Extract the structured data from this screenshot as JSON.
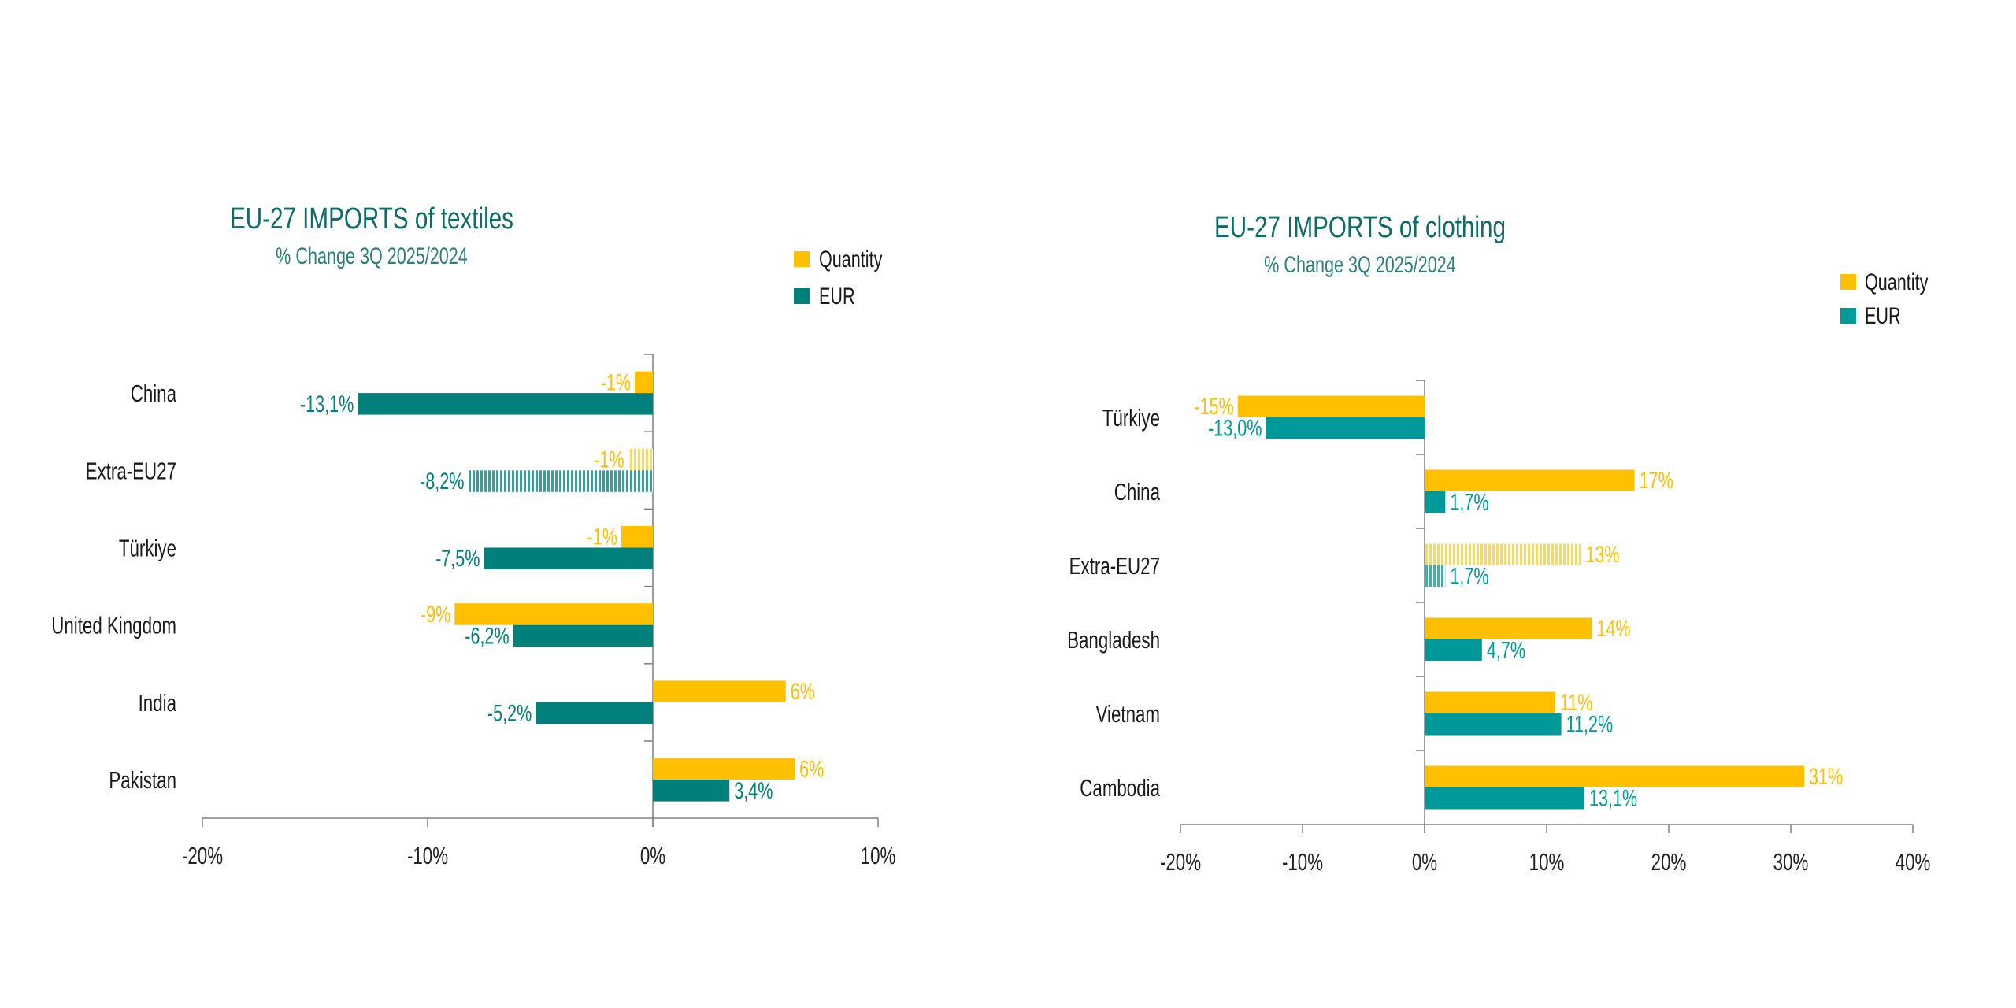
{
  "colors": {
    "quantity": "#FFC000",
    "eur_textiles": "#007F7B",
    "eur_clothing": "#009999",
    "title": "#0E6B66",
    "subtitle": "#2E7F7A",
    "axis": "#7F7F7F",
    "text": "#1A1A1A"
  },
  "chart_data": [
    {
      "type": "bar",
      "orientation": "horizontal",
      "title": "EU-27 IMPORTS of textiles",
      "subtitle": "% Change 3Q  2025/2024",
      "categories": [
        "China",
        "Extra-EU27",
        "Türkiye",
        "United Kingdom",
        "India",
        "Pakistan"
      ],
      "series": [
        {
          "name": "Quantity",
          "values": [
            -0.8,
            -1.1,
            -1.4,
            -8.8,
            5.9,
            6.3
          ],
          "labels": [
            "-1%",
            "-1%",
            "-1%",
            "-9%",
            "6%",
            "6%"
          ]
        },
        {
          "name": "EUR",
          "values": [
            -13.1,
            -8.2,
            -7.5,
            -6.2,
            -5.2,
            3.4
          ],
          "labels": [
            "-13,1%",
            "-8,2%",
            "-7,5%",
            "-6,2%",
            "-5,2%",
            "3,4%"
          ]
        }
      ],
      "highlighted_category": "Extra-EU27",
      "xlim": [
        -20,
        10
      ],
      "xticks": [
        -20,
        -10,
        0,
        10
      ],
      "xtick_labels": [
        "-20%",
        "-10%",
        "0%",
        "10%"
      ],
      "legend": {
        "position": "top-right",
        "entries": [
          "Quantity",
          "EUR"
        ]
      },
      "grid": false
    },
    {
      "type": "bar",
      "orientation": "horizontal",
      "title": "EU-27 IMPORTS of clothing",
      "subtitle": "% Change 3Q  2025/2024",
      "categories": [
        "Türkiye",
        "China",
        "Extra-EU27",
        "Bangladesh",
        "Vietnam",
        "Cambodia"
      ],
      "series": [
        {
          "name": "Quantity",
          "values": [
            -15.3,
            17.2,
            12.8,
            13.7,
            10.7,
            31.1
          ],
          "labels": [
            "-15%",
            "17%",
            "13%",
            "14%",
            "11%",
            "31%"
          ]
        },
        {
          "name": "EUR",
          "values": [
            -13.0,
            1.7,
            1.7,
            4.7,
            11.2,
            13.1
          ],
          "labels": [
            "-13,0%",
            "1,7%",
            "1,7%",
            "4,7%",
            "11,2%",
            "13,1%"
          ]
        }
      ],
      "highlighted_category": "Extra-EU27",
      "xlim": [
        -20,
        40
      ],
      "xticks": [
        -20,
        -10,
        0,
        10,
        20,
        30,
        40
      ],
      "xtick_labels": [
        "-20%",
        "-10%",
        "0%",
        "10%",
        "20%",
        "30%",
        "40%"
      ],
      "legend": {
        "position": "top-right",
        "entries": [
          "Quantity",
          "EUR"
        ]
      },
      "grid": false
    }
  ]
}
